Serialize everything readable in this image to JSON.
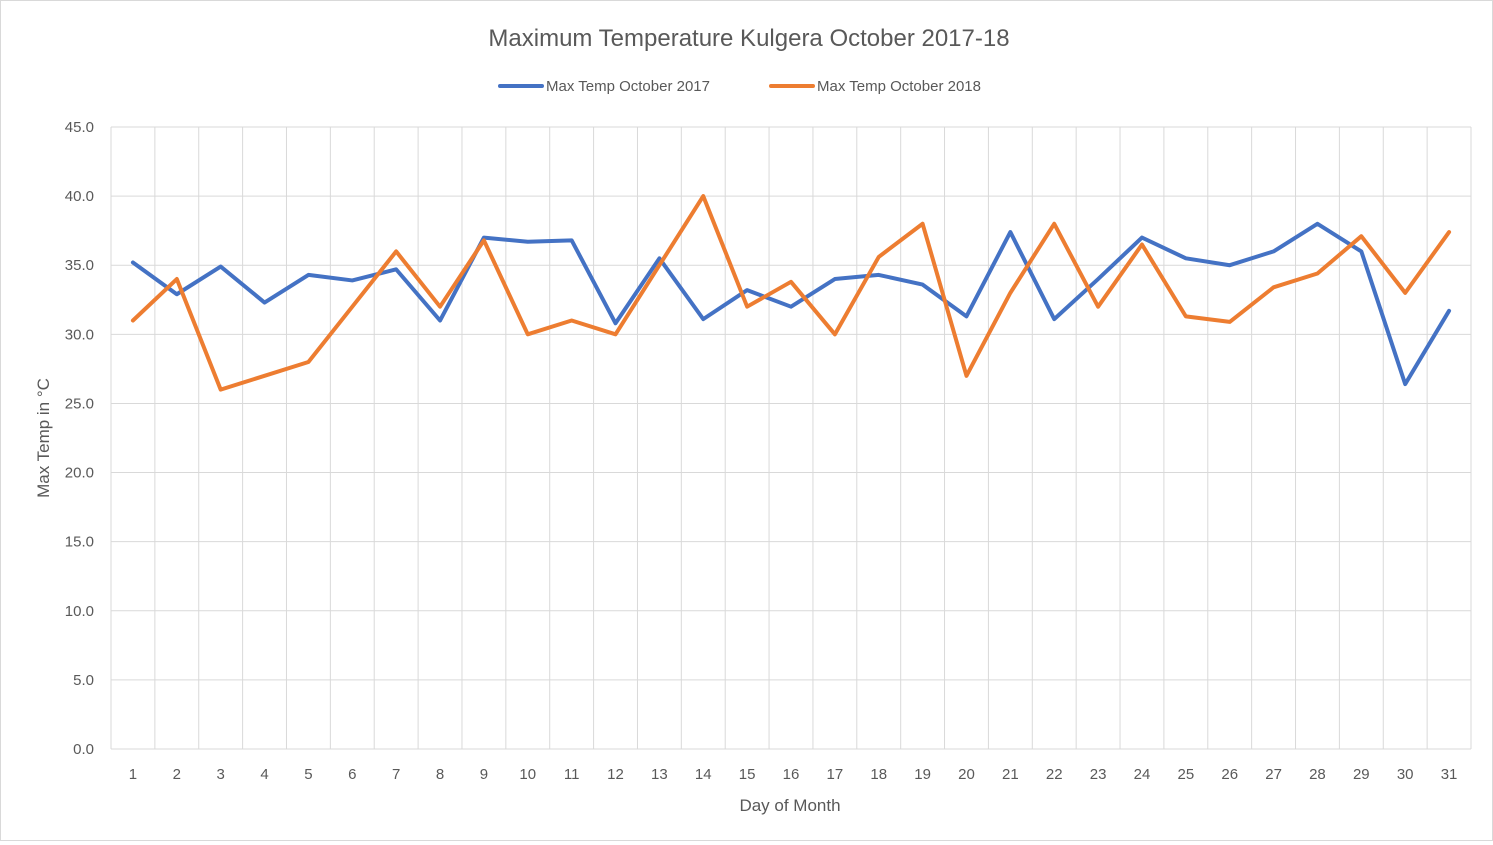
{
  "chart_data": {
    "type": "line",
    "title": "Maximum Temperature  Kulgera October 2017-18",
    "xlabel": "Day of Month",
    "ylabel": "Max Temp in °C",
    "ylim": [
      0,
      45
    ],
    "ytick_step": 5,
    "ytick_labels": [
      "0.0",
      "5.0",
      "10.0",
      "15.0",
      "20.0",
      "25.0",
      "30.0",
      "35.0",
      "40.0",
      "45.0"
    ],
    "grid": true,
    "legend_position": "top",
    "x": [
      "1",
      "2",
      "3",
      "4",
      "5",
      "6",
      "7",
      "8",
      "9",
      "10",
      "11",
      "12",
      "13",
      "14",
      "15",
      "16",
      "17",
      "18",
      "19",
      "20",
      "21",
      "22",
      "23",
      "24",
      "25",
      "26",
      "27",
      "28",
      "29",
      "30",
      "31"
    ],
    "series": [
      {
        "name": "Max Temp October 2017",
        "color": "#4472c4",
        "values": [
          35.2,
          32.9,
          34.9,
          32.3,
          34.3,
          33.9,
          34.7,
          31.0,
          37.0,
          36.7,
          36.8,
          30.8,
          35.5,
          31.1,
          33.2,
          32.0,
          34.0,
          34.3,
          33.6,
          31.3,
          37.4,
          31.1,
          34.0,
          37.0,
          35.5,
          35.0,
          36.0,
          38.0,
          36.0,
          26.4,
          31.7
        ]
      },
      {
        "name": "Max Temp October 2018",
        "color": "#ed7d31",
        "values": [
          31.0,
          34.0,
          26.0,
          27.0,
          28.0,
          32.0,
          36.0,
          32.0,
          36.8,
          30.0,
          31.0,
          30.0,
          35.0,
          40.0,
          32.0,
          33.8,
          30.0,
          35.6,
          38.0,
          27.0,
          33.0,
          38.0,
          32.0,
          36.5,
          31.3,
          30.9,
          33.4,
          34.4,
          37.1,
          33.0,
          37.4
        ]
      }
    ]
  }
}
